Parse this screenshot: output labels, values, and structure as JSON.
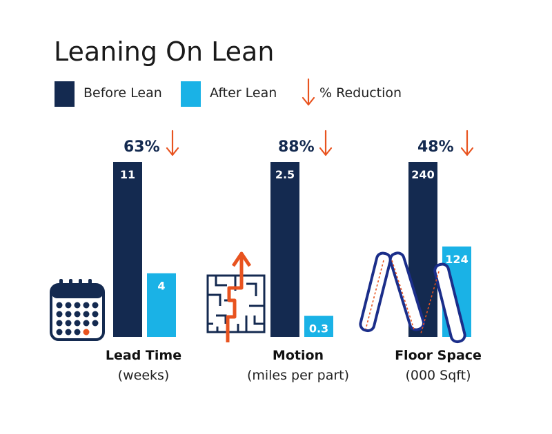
{
  "colors": {
    "before": "#142a50",
    "after": "#1ab2e6",
    "reduction": "#e8531f"
  },
  "chart_data": {
    "type": "bar",
    "title": "Leaning On Lean",
    "legend": {
      "before": "Before Lean",
      "after": "After Lean",
      "reduction": "% Reduction"
    },
    "categories": [
      {
        "name": "Lead Time",
        "unit": "(weeks)",
        "before": 11,
        "after": 4,
        "before_label": "11",
        "after_label": "4",
        "reduction": "63%",
        "icon": "calendar-icon"
      },
      {
        "name": "Motion",
        "unit": "(miles per part)",
        "before": 2.5,
        "after": 0.3,
        "before_label": "2.5",
        "after_label": "0.3",
        "reduction": "88%",
        "icon": "maze-icon"
      },
      {
        "name": "Floor Space",
        "unit": "(000 Sqft)",
        "before": 240,
        "after": 124,
        "before_label": "240",
        "after_label": "124",
        "reduction": "48%",
        "icon": "folding-ruler-icon"
      }
    ]
  }
}
